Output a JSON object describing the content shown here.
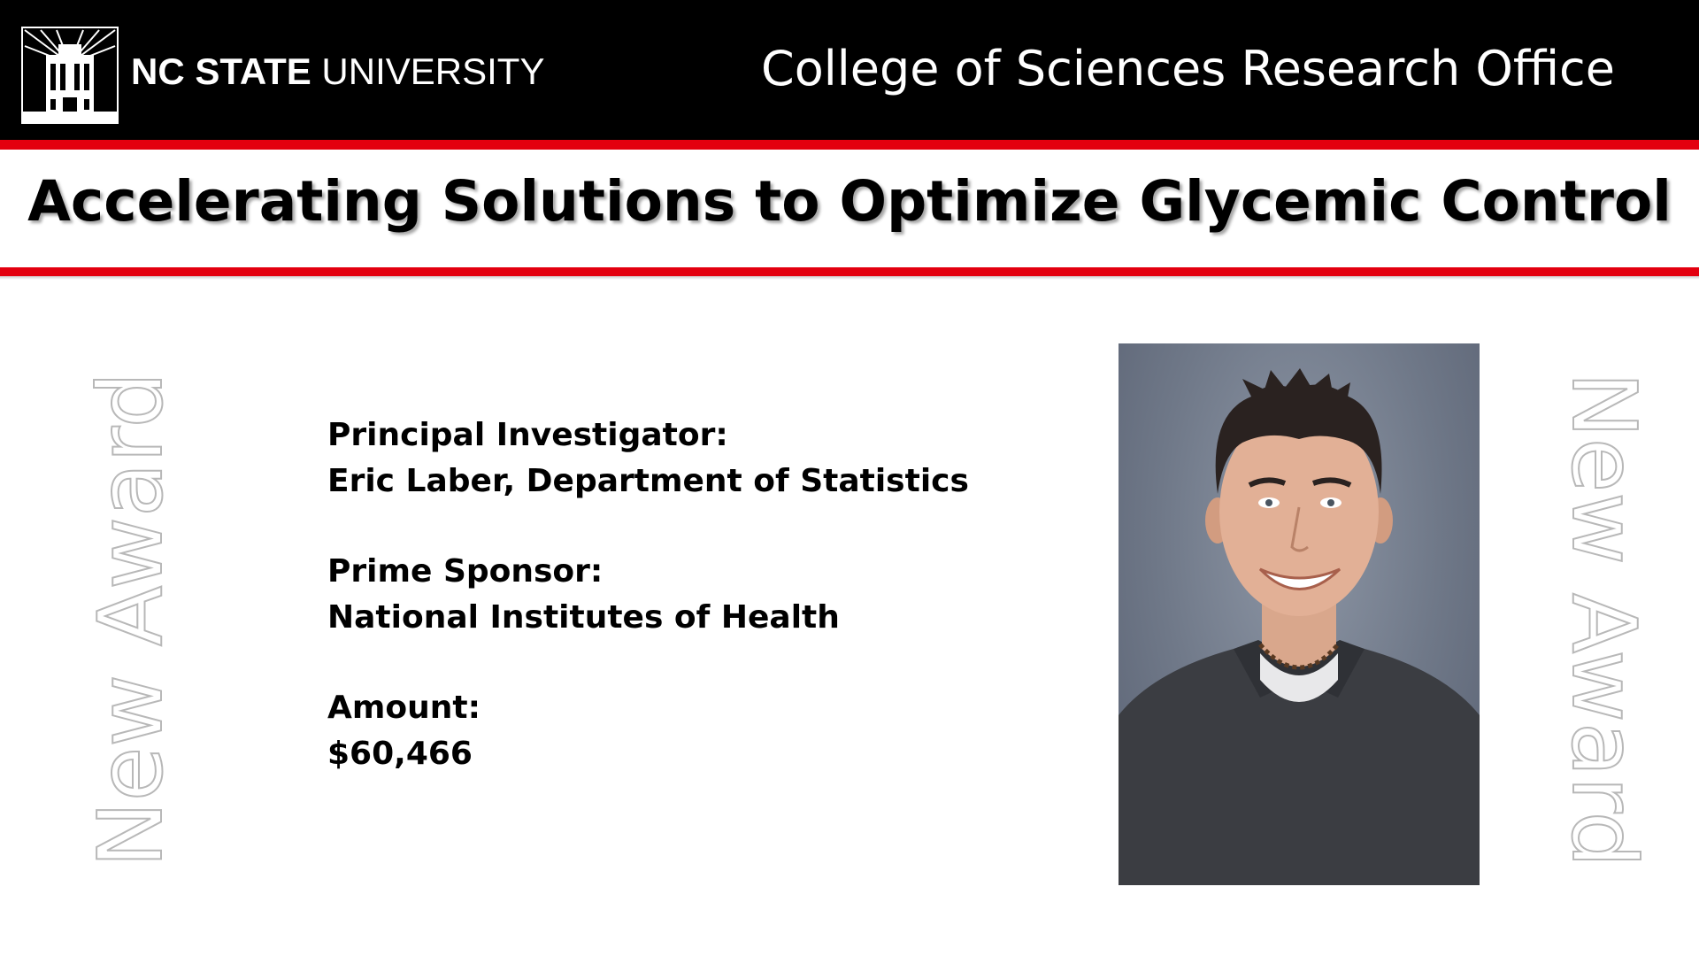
{
  "header": {
    "logo_bold": "NC STATE",
    "logo_regular": " UNIVERSITY",
    "office": "College of Sciences Research Office",
    "background": "#000000",
    "accent": "#e3000f"
  },
  "title": "Accelerating Solutions to Optimize Glycemic Control",
  "side_label": "New Award",
  "info": {
    "pi_label": "Principal Investigator:",
    "pi_value": "Eric Laber, Department of Statistics",
    "sponsor_label": "Prime Sponsor:",
    "sponsor_value": "National Institutes of Health",
    "amount_label": "Amount:",
    "amount_value": "$60,466"
  },
  "icons": {
    "logo": "belltower-icon"
  }
}
